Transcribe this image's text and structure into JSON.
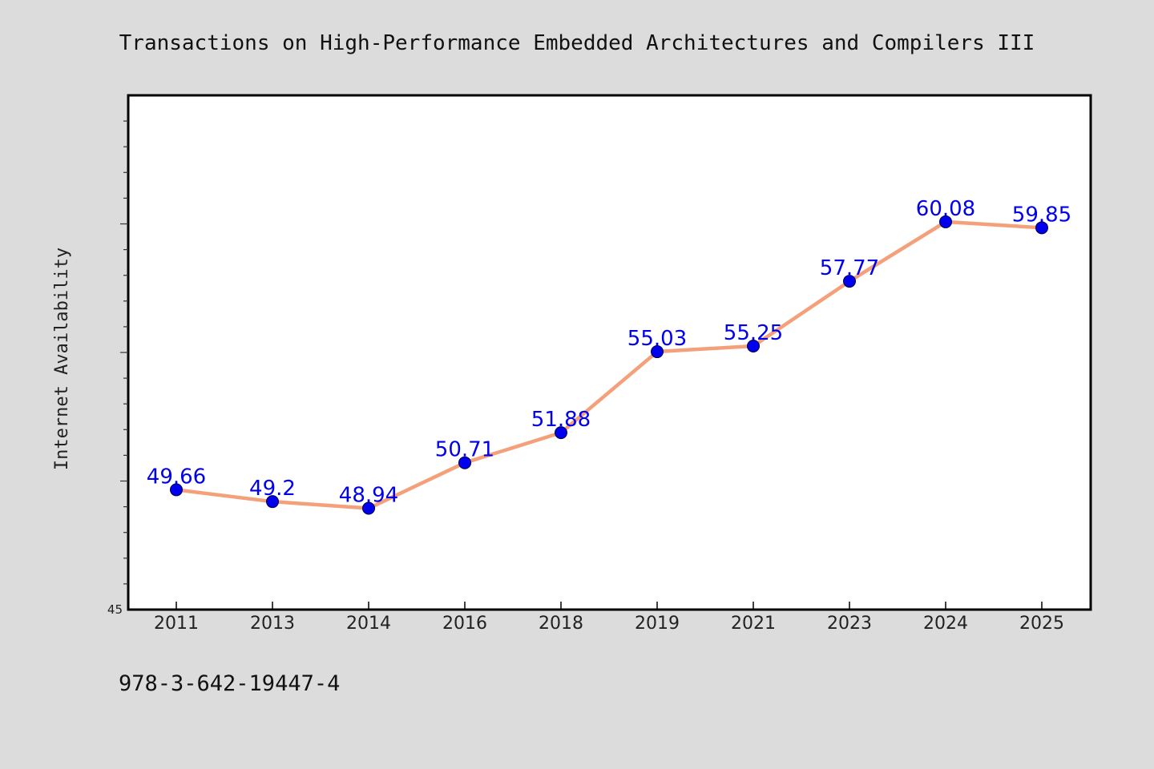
{
  "chart_data": {
    "type": "line",
    "title": "Transactions on High-Performance Embedded Architectures and Compilers III",
    "xlabel": "",
    "ylabel": "Internet Availability",
    "categories": [
      "2011",
      "2013",
      "2014",
      "2016",
      "2018",
      "2019",
      "2021",
      "2023",
      "2024",
      "2025"
    ],
    "series": [
      {
        "values": [
          49.66,
          49.2,
          48.94,
          50.71,
          51.88,
          55.03,
          55.25,
          57.77,
          60.08,
          59.85
        ]
      }
    ],
    "data_labels": [
      "49.66",
      "49.2",
      "48.94",
      "50.71",
      "51.88",
      "55.03",
      "55.25",
      "57.77",
      "60.08",
      "59.85"
    ],
    "ylim": [
      45,
      65
    ],
    "y_tick_label": "45",
    "grid": false,
    "line_color": "#f4a07a",
    "marker_color": "#0000ee",
    "label_color": "#0000ee"
  },
  "footer": {
    "isbn": "978-3-642-19447-4"
  }
}
